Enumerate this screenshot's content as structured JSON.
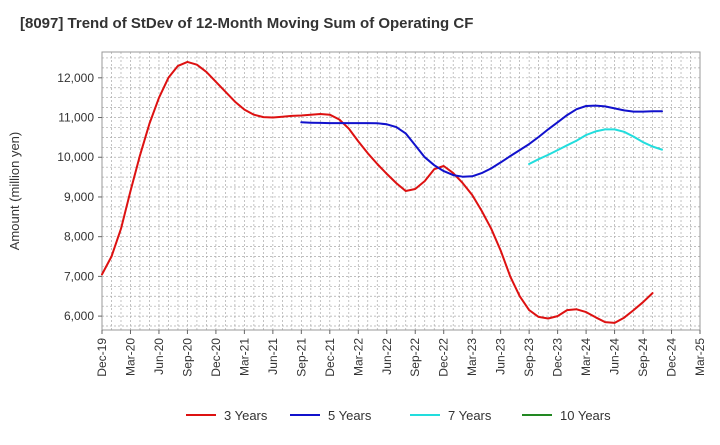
{
  "chart_data": {
    "type": "line",
    "title": "[8097]  Trend of StDev of 12-Month Moving Sum of Operating CF",
    "xlabel": "",
    "ylabel": "Amount (million yen)",
    "ylim": [
      5650,
      12650
    ],
    "yticks": [
      6000,
      7000,
      8000,
      9000,
      10000,
      11000,
      12000
    ],
    "ytick_labels": [
      "6,000",
      "7,000",
      "8,000",
      "9,000",
      "10,000",
      "11,000",
      "12,000"
    ],
    "xtick_labels": [
      "Dec-19",
      "Mar-20",
      "Jun-20",
      "Sep-20",
      "Dec-20",
      "Mar-21",
      "Jun-21",
      "Sep-21",
      "Dec-21",
      "Mar-22",
      "Jun-22",
      "Sep-22",
      "Dec-22",
      "Mar-23",
      "Jun-23",
      "Sep-23",
      "Dec-23",
      "Mar-24",
      "Jun-24",
      "Sep-24",
      "Dec-24",
      "Mar-25"
    ],
    "grid": true,
    "legend_position": "bottom",
    "series": [
      {
        "name": "3 Years",
        "color": "#dd1111",
        "start_month_index": 0,
        "values": [
          7050,
          7500,
          8200,
          9150,
          10050,
          10850,
          11500,
          12000,
          12300,
          12400,
          12330,
          12150,
          11900,
          11650,
          11400,
          11200,
          11070,
          11010,
          11000,
          11020,
          11040,
          11050,
          11070,
          11090,
          11070,
          10950,
          10720,
          10400,
          10100,
          9830,
          9580,
          9350,
          9150,
          9200,
          9400,
          9700,
          9780,
          9600,
          9350,
          9050,
          8650,
          8200,
          7650,
          7000,
          6500,
          6150,
          5980,
          5940,
          6000,
          6150,
          6170,
          6100,
          5970,
          5850,
          5830,
          5960,
          6150,
          6350,
          6580
        ]
      },
      {
        "name": "5 Years",
        "color": "#1111cc",
        "start_month_index": 21,
        "values": [
          10880,
          10870,
          10865,
          10860,
          10860,
          10860,
          10860,
          10860,
          10855,
          10830,
          10760,
          10600,
          10300,
          10000,
          9800,
          9650,
          9550,
          9510,
          9520,
          9600,
          9720,
          9870,
          10030,
          10180,
          10330,
          10510,
          10700,
          10880,
          11060,
          11210,
          11290,
          11300,
          11280,
          11230,
          11180,
          11150,
          11150,
          11160,
          11160
        ]
      },
      {
        "name": "7 Years",
        "color": "#22dddd",
        "start_month_index": 45,
        "values": [
          9830,
          9950,
          10060,
          10180,
          10300,
          10420,
          10560,
          10650,
          10700,
          10700,
          10640,
          10520,
          10380,
          10270,
          10190
        ]
      },
      {
        "name": "10 Years",
        "color": "#228822",
        "start_month_index": 0,
        "values": []
      }
    ]
  }
}
